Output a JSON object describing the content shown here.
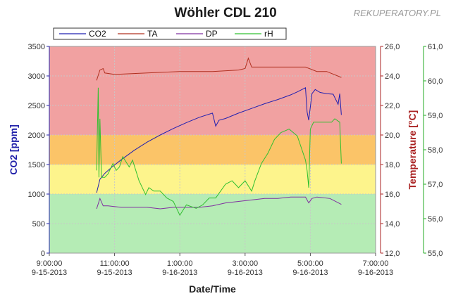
{
  "chart_data": {
    "type": "line",
    "title": "Wöhler CDL 210",
    "watermark": "REKUPERATORY.PL",
    "xlabel": "Date/Time",
    "x_ticks": [
      {
        "t": 0,
        "time": "9:00:00",
        "date": "9-15-2013"
      },
      {
        "t": 2,
        "time": "11:00:00",
        "date": "9-15-2013"
      },
      {
        "t": 4,
        "time": "1:00:00",
        "date": "9-16-2013"
      },
      {
        "t": 6,
        "time": "3:00:00",
        "date": "9-16-2013"
      },
      {
        "t": 8,
        "time": "5:00:00",
        "date": "9-16-2013"
      },
      {
        "t": 10,
        "time": "7:00:00",
        "date": "9-16-2013"
      }
    ],
    "xlim": [
      0,
      10
    ],
    "axes": {
      "co2": {
        "label": "CO2 [ppm]",
        "lim": [
          0,
          3500
        ],
        "ticks": [
          "0",
          "500",
          "1000",
          "1500",
          "2000",
          "2500",
          "3000",
          "3500"
        ],
        "color": "#2222aa"
      },
      "temperature": {
        "label": "Temperature [°C]",
        "lim": [
          12,
          26
        ],
        "ticks": [
          "12,0",
          "14,0",
          "16,0",
          "18,0",
          "20,0",
          "22,0",
          "24,0",
          "26,0"
        ],
        "color": "#aa2222"
      },
      "rh": {
        "label": "",
        "lim": [
          55,
          61
        ],
        "ticks": [
          "55,0",
          "56,0",
          "57,0",
          "58,0",
          "59,0",
          "60,0",
          "61,0"
        ],
        "color": "#22aa22"
      }
    },
    "bands_co2": [
      {
        "from": 2000,
        "to": 3500,
        "color": "#f1a1a1"
      },
      {
        "from": 1500,
        "to": 2000,
        "color": "#fbc468"
      },
      {
        "from": 1000,
        "to": 1500,
        "color": "#fdf48c"
      },
      {
        "from": 0,
        "to": 1000,
        "color": "#b5ecb5"
      }
    ],
    "grid": true,
    "legend": {
      "position": "top",
      "entries": [
        "CO2",
        "TA",
        "DP",
        "rH"
      ]
    },
    "series": [
      {
        "name": "CO2",
        "axis": "co2",
        "color": "#2020b0",
        "x": [
          1.45,
          1.55,
          1.7,
          1.9,
          2.2,
          2.6,
          3.0,
          3.4,
          3.8,
          4.2,
          4.6,
          5.0,
          5.1,
          5.2,
          5.4,
          5.8,
          6.2,
          6.6,
          7.0,
          7.4,
          7.6,
          7.85,
          7.9,
          7.95,
          8.05,
          8.15,
          8.3,
          8.5,
          8.7,
          8.85,
          8.9,
          8.95
        ],
        "y": [
          1020,
          1250,
          1350,
          1450,
          1580,
          1740,
          1880,
          2000,
          2110,
          2210,
          2300,
          2370,
          2150,
          2250,
          2280,
          2370,
          2450,
          2530,
          2600,
          2680,
          2730,
          2800,
          2390,
          2250,
          2700,
          2770,
          2720,
          2700,
          2690,
          2520,
          2700,
          2340
        ]
      },
      {
        "name": "TA",
        "axis": "temperature",
        "color": "#b03020",
        "x": [
          1.45,
          1.55,
          1.65,
          1.7,
          2.0,
          3.0,
          4.0,
          5.0,
          5.8,
          6.0,
          6.1,
          6.2,
          7.0,
          7.5,
          7.85,
          8.2,
          8.5,
          8.95
        ],
        "y": [
          23.7,
          24.4,
          24.5,
          24.2,
          24.1,
          24.2,
          24.3,
          24.3,
          24.4,
          24.5,
          25.2,
          24.6,
          24.6,
          24.6,
          24.6,
          24.3,
          24.3,
          23.9
        ]
      },
      {
        "name": "DP",
        "axis": "temperature",
        "color": "#8030a0",
        "x": [
          1.45,
          1.55,
          1.65,
          1.8,
          2.2,
          2.6,
          3.0,
          3.4,
          3.8,
          4.2,
          4.6,
          5.0,
          5.4,
          5.8,
          6.2,
          6.6,
          7.0,
          7.4,
          7.85,
          7.95,
          8.05,
          8.2,
          8.6,
          8.95
        ],
        "y": [
          15.0,
          15.7,
          15.2,
          15.2,
          15.1,
          15.1,
          15.1,
          15.0,
          15.1,
          15.1,
          15.1,
          15.2,
          15.4,
          15.5,
          15.6,
          15.7,
          15.7,
          15.8,
          15.8,
          15.4,
          15.7,
          15.8,
          15.7,
          15.3
        ]
      },
      {
        "name": "rH",
        "axis": "rh",
        "color": "#30c030",
        "x": [
          1.45,
          1.5,
          1.52,
          1.55,
          1.6,
          1.7,
          1.8,
          1.95,
          2.05,
          2.15,
          2.25,
          2.45,
          2.55,
          2.75,
          2.95,
          3.05,
          3.2,
          3.4,
          3.6,
          3.8,
          3.9,
          4.0,
          4.2,
          4.5,
          4.7,
          4.9,
          5.1,
          5.4,
          5.6,
          5.8,
          6.0,
          6.2,
          6.3,
          6.5,
          6.7,
          6.9,
          7.1,
          7.35,
          7.6,
          7.85,
          7.9,
          7.95,
          8.0,
          8.1,
          8.3,
          8.5,
          8.65,
          8.75,
          8.9,
          8.95
        ],
        "y": [
          57.4,
          59.8,
          57.2,
          58.9,
          57.2,
          57.2,
          57.3,
          57.6,
          57.4,
          57.5,
          57.8,
          57.5,
          57.7,
          57.1,
          56.7,
          56.9,
          56.8,
          56.8,
          56.6,
          56.5,
          56.3,
          56.1,
          56.4,
          56.3,
          56.4,
          56.6,
          56.6,
          57.0,
          57.1,
          56.9,
          57.1,
          56.8,
          57.1,
          57.6,
          57.9,
          58.3,
          58.5,
          58.6,
          58.4,
          57.7,
          57.4,
          56.9,
          58.6,
          58.8,
          58.8,
          58.8,
          58.8,
          58.9,
          58.8,
          57.6
        ]
      }
    ]
  }
}
